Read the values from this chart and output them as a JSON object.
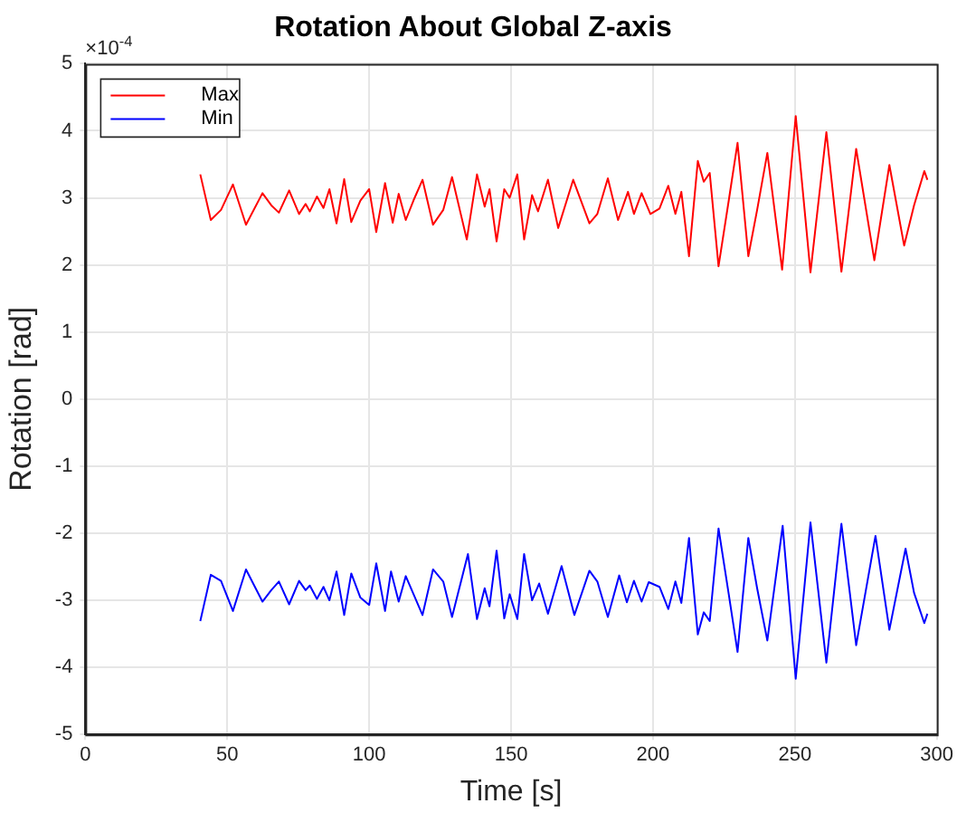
{
  "chart_data": {
    "type": "line",
    "title": "Rotation About Global Z-axis",
    "xlabel": "Time [s]",
    "ylabel": "Rotation [rad]",
    "annotations": [
      "×10$^{-4}$"
    ],
    "xlim": [
      0,
      300
    ],
    "xticks": [
      0,
      50,
      100,
      150,
      200,
      250,
      300
    ],
    "ylim": [
      -5,
      5
    ],
    "yticks": [
      -5,
      -4,
      -3,
      -2,
      -1,
      0,
      1,
      2,
      3,
      4,
      5
    ],
    "grid": true,
    "legend": "top left",
    "marker": "none",
    "line_style": "solid",
    "series": [
      {
        "name": "Max",
        "color": "#ff0000",
        "x": [
          40.5,
          44.2,
          47.8,
          52.0,
          56.6,
          62.4,
          65.5,
          68.2,
          71.8,
          75.3,
          77.6,
          79.1,
          81.6,
          83.9,
          86.0,
          88.5,
          91.2,
          93.7,
          96.9,
          100.0,
          102.5,
          105.6,
          108.3,
          110.4,
          112.9,
          115.6,
          118.8,
          122.5,
          126.1,
          129.2,
          134.4,
          138.0,
          140.7,
          142.4,
          144.9,
          147.6,
          149.5,
          152.2,
          154.6,
          157.4,
          159.5,
          163.0,
          166.6,
          171.9,
          177.6,
          180.4,
          184.1,
          187.7,
          191.2,
          193.3,
          196.0,
          199.1,
          202.3,
          205.4,
          207.9,
          210.0,
          212.7,
          215.8,
          217.9,
          220.0,
          223.1,
          226.7,
          229.8,
          233.6,
          236.7,
          240.3,
          245.5,
          250.3,
          255.5,
          261.1,
          266.4,
          271.6,
          278.0,
          283.3,
          288.5,
          292.0,
          295.6,
          296.7
        ],
        "values": [
          3.35,
          2.67,
          2.82,
          3.2,
          2.6,
          3.07,
          2.89,
          2.78,
          3.11,
          2.76,
          2.91,
          2.8,
          3.02,
          2.85,
          3.13,
          2.62,
          3.28,
          2.64,
          2.96,
          3.13,
          2.49,
          3.22,
          2.63,
          3.06,
          2.67,
          2.96,
          3.27,
          2.6,
          2.82,
          3.31,
          2.38,
          3.35,
          2.87,
          3.13,
          2.35,
          3.13,
          3.0,
          3.35,
          2.38,
          3.04,
          2.8,
          3.27,
          2.55,
          3.27,
          2.62,
          2.76,
          3.29,
          2.67,
          3.09,
          2.76,
          3.07,
          2.76,
          2.84,
          3.18,
          2.76,
          3.09,
          2.13,
          3.55,
          3.24,
          3.37,
          1.98,
          2.96,
          3.82,
          2.13,
          2.82,
          3.67,
          1.93,
          4.22,
          1.89,
          3.98,
          1.9,
          3.73,
          2.07,
          3.49,
          2.29,
          2.89,
          3.4,
          3.27
        ]
      },
      {
        "name": "Min",
        "color": "#0000ff",
        "x": [
          40.5,
          44.2,
          47.8,
          52.0,
          56.6,
          62.4,
          65.5,
          68.2,
          71.8,
          75.3,
          77.6,
          79.1,
          81.6,
          83.9,
          86.0,
          88.5,
          91.2,
          93.7,
          96.9,
          100.0,
          102.5,
          105.6,
          107.7,
          110.4,
          112.9,
          118.8,
          122.5,
          126.1,
          129.2,
          134.8,
          138.0,
          140.7,
          142.4,
          144.9,
          147.6,
          149.5,
          152.2,
          154.6,
          157.4,
          159.9,
          163.0,
          167.8,
          172.3,
          177.6,
          180.4,
          184.1,
          188.1,
          190.8,
          193.3,
          196.0,
          198.5,
          202.3,
          205.4,
          207.9,
          210.0,
          212.7,
          215.8,
          217.9,
          220.0,
          223.1,
          226.7,
          229.8,
          233.6,
          236.7,
          240.3,
          245.7,
          250.3,
          255.5,
          261.1,
          266.4,
          271.6,
          278.4,
          283.3,
          289.0,
          292.0,
          295.6,
          296.7
        ],
        "values": [
          -3.31,
          -2.62,
          -2.71,
          -3.16,
          -2.54,
          -3.02,
          -2.85,
          -2.72,
          -3.06,
          -2.71,
          -2.85,
          -2.78,
          -2.98,
          -2.8,
          -3.0,
          -2.57,
          -3.22,
          -2.6,
          -2.96,
          -3.07,
          -2.45,
          -3.16,
          -2.57,
          -3.02,
          -2.64,
          -3.22,
          -2.54,
          -2.72,
          -3.25,
          -2.31,
          -3.28,
          -2.82,
          -3.09,
          -2.26,
          -3.27,
          -2.91,
          -3.28,
          -2.31,
          -3.0,
          -2.75,
          -3.2,
          -2.49,
          -3.22,
          -2.56,
          -2.72,
          -3.25,
          -2.63,
          -3.03,
          -2.71,
          -3.02,
          -2.73,
          -2.8,
          -3.13,
          -2.72,
          -3.04,
          -2.07,
          -3.51,
          -3.18,
          -3.31,
          -1.93,
          -2.91,
          -3.77,
          -2.07,
          -2.82,
          -3.6,
          -1.89,
          -4.17,
          -1.84,
          -3.93,
          -1.86,
          -3.67,
          -2.04,
          -3.44,
          -2.23,
          -2.89,
          -3.34,
          -3.2
        ]
      }
    ]
  }
}
